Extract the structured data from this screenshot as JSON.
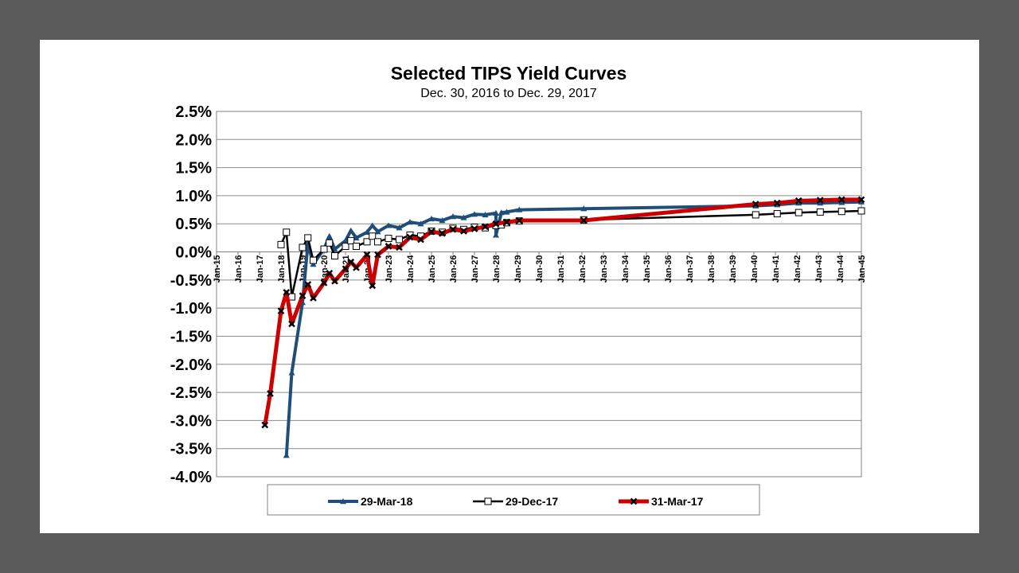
{
  "chart_data": {
    "type": "line",
    "title": "Selected TIPS Yield Curves",
    "subtitle": "Dec. 30, 2016 to Dec. 29, 2017",
    "xlabel": "",
    "ylabel": "",
    "x_axis": {
      "type": "date",
      "min": "2015-01",
      "max": "2045-01",
      "tick_labels": [
        "Jan-15",
        "Jan-16",
        "Jan-17",
        "Jan-18",
        "Jan-19",
        "Jan-20",
        "Jan-21",
        "Jan-22",
        "Jan-23",
        "Jan-24",
        "Jan-25",
        "Jan-26",
        "Jan-27",
        "Jan-28",
        "Jan-29",
        "Jan-30",
        "Jan-31",
        "Jan-32",
        "Jan-33",
        "Jan-34",
        "Jan-35",
        "Jan-36",
        "Jan-37",
        "Jan-38",
        "Jan-39",
        "Jan-40",
        "Jan-41",
        "Jan-42",
        "Jan-43",
        "Jan-44",
        "Jan-45"
      ]
    },
    "y_axis": {
      "min": -4.0,
      "max": 2.5,
      "tick_labels": [
        "2.5%",
        "2.0%",
        "1.5%",
        "1.0%",
        "0.5%",
        "0.0%",
        "-0.5%",
        "-1.0%",
        "-1.5%",
        "-2.0%",
        "-2.5%",
        "-3.0%",
        "-3.5%",
        "-4.0%"
      ]
    },
    "grid": true,
    "legend_position": "bottom",
    "series": [
      {
        "name": "29-Mar-18",
        "color": "#1f4e79",
        "marker": "triangle",
        "points": [
          [
            "2018-04",
            -3.62
          ],
          [
            "2018-07",
            -2.15
          ],
          [
            "2019-01",
            -0.9
          ],
          [
            "2019-04",
            0.15
          ],
          [
            "2019-07",
            -0.22
          ],
          [
            "2020-01",
            0.05
          ],
          [
            "2020-04",
            0.28
          ],
          [
            "2020-07",
            0.05
          ],
          [
            "2021-01",
            0.2
          ],
          [
            "2021-04",
            0.38
          ],
          [
            "2021-07",
            0.25
          ],
          [
            "2022-01",
            0.35
          ],
          [
            "2022-04",
            0.47
          ],
          [
            "2022-07",
            0.36
          ],
          [
            "2023-01",
            0.47
          ],
          [
            "2023-07",
            0.43
          ],
          [
            "2024-01",
            0.53
          ],
          [
            "2024-07",
            0.5
          ],
          [
            "2025-01",
            0.59
          ],
          [
            "2025-07",
            0.56
          ],
          [
            "2026-01",
            0.63
          ],
          [
            "2026-07",
            0.61
          ],
          [
            "2027-01",
            0.67
          ],
          [
            "2027-07",
            0.66
          ],
          [
            "2028-01",
            0.69
          ],
          [
            "2028-01",
            0.3
          ],
          [
            "2028-04",
            0.7
          ],
          [
            "2028-07",
            0.71
          ],
          [
            "2029-02",
            0.75
          ],
          [
            "2032-02",
            0.77
          ],
          [
            "2040-02",
            0.82
          ],
          [
            "2041-02",
            0.84
          ],
          [
            "2042-02",
            0.87
          ],
          [
            "2043-02",
            0.87
          ],
          [
            "2044-02",
            0.88
          ],
          [
            "2045-01",
            0.89
          ]
        ]
      },
      {
        "name": "29-Dec-17",
        "color": "#000000",
        "marker": "square",
        "points": [
          [
            "2018-01",
            0.13
          ],
          [
            "2018-04",
            0.35
          ],
          [
            "2018-07",
            -0.8
          ],
          [
            "2019-01",
            0.08
          ],
          [
            "2019-04",
            0.25
          ],
          [
            "2019-07",
            -0.15
          ],
          [
            "2020-01",
            0.05
          ],
          [
            "2020-04",
            0.16
          ],
          [
            "2020-07",
            -0.07
          ],
          [
            "2021-01",
            0.1
          ],
          [
            "2021-04",
            0.2
          ],
          [
            "2021-07",
            0.1
          ],
          [
            "2022-01",
            0.18
          ],
          [
            "2022-04",
            0.28
          ],
          [
            "2022-07",
            0.18
          ],
          [
            "2023-01",
            0.24
          ],
          [
            "2023-07",
            0.22
          ],
          [
            "2024-01",
            0.3
          ],
          [
            "2024-07",
            0.28
          ],
          [
            "2025-01",
            0.37
          ],
          [
            "2025-07",
            0.35
          ],
          [
            "2026-01",
            0.42
          ],
          [
            "2026-07",
            0.4
          ],
          [
            "2027-01",
            0.44
          ],
          [
            "2027-07",
            0.43
          ],
          [
            "2028-01",
            0.47
          ],
          [
            "2028-04",
            0.48
          ],
          [
            "2028-07",
            0.52
          ],
          [
            "2029-02",
            0.55
          ],
          [
            "2032-02",
            0.57
          ],
          [
            "2040-02",
            0.66
          ],
          [
            "2041-02",
            0.68
          ],
          [
            "2042-02",
            0.7
          ],
          [
            "2043-02",
            0.71
          ],
          [
            "2044-02",
            0.72
          ],
          [
            "2045-01",
            0.73
          ]
        ]
      },
      {
        "name": "31-Mar-17",
        "color": "#cc0000",
        "marker": "x",
        "points": [
          [
            "2017-04",
            -3.08
          ],
          [
            "2017-07",
            -2.52
          ],
          [
            "2018-01",
            -1.05
          ],
          [
            "2018-04",
            -0.72
          ],
          [
            "2018-07",
            -1.28
          ],
          [
            "2019-01",
            -0.78
          ],
          [
            "2019-04",
            -0.58
          ],
          [
            "2019-07",
            -0.82
          ],
          [
            "2020-01",
            -0.55
          ],
          [
            "2020-04",
            -0.38
          ],
          [
            "2020-07",
            -0.52
          ],
          [
            "2021-01",
            -0.3
          ],
          [
            "2021-04",
            -0.18
          ],
          [
            "2021-07",
            -0.28
          ],
          [
            "2022-01",
            -0.05
          ],
          [
            "2022-04",
            -0.6
          ],
          [
            "2022-07",
            -0.05
          ],
          [
            "2023-01",
            0.1
          ],
          [
            "2023-07",
            0.08
          ],
          [
            "2024-01",
            0.26
          ],
          [
            "2024-07",
            0.22
          ],
          [
            "2025-01",
            0.36
          ],
          [
            "2025-07",
            0.33
          ],
          [
            "2026-01",
            0.4
          ],
          [
            "2026-07",
            0.37
          ],
          [
            "2027-01",
            0.41
          ],
          [
            "2027-07",
            0.45
          ],
          [
            "2028-01",
            0.5
          ],
          [
            "2028-07",
            0.53
          ],
          [
            "2029-02",
            0.56
          ],
          [
            "2032-02",
            0.56
          ],
          [
            "2040-02",
            0.85
          ],
          [
            "2041-02",
            0.87
          ],
          [
            "2042-02",
            0.91
          ],
          [
            "2043-02",
            0.92
          ],
          [
            "2044-02",
            0.93
          ],
          [
            "2045-01",
            0.93
          ]
        ]
      }
    ]
  }
}
